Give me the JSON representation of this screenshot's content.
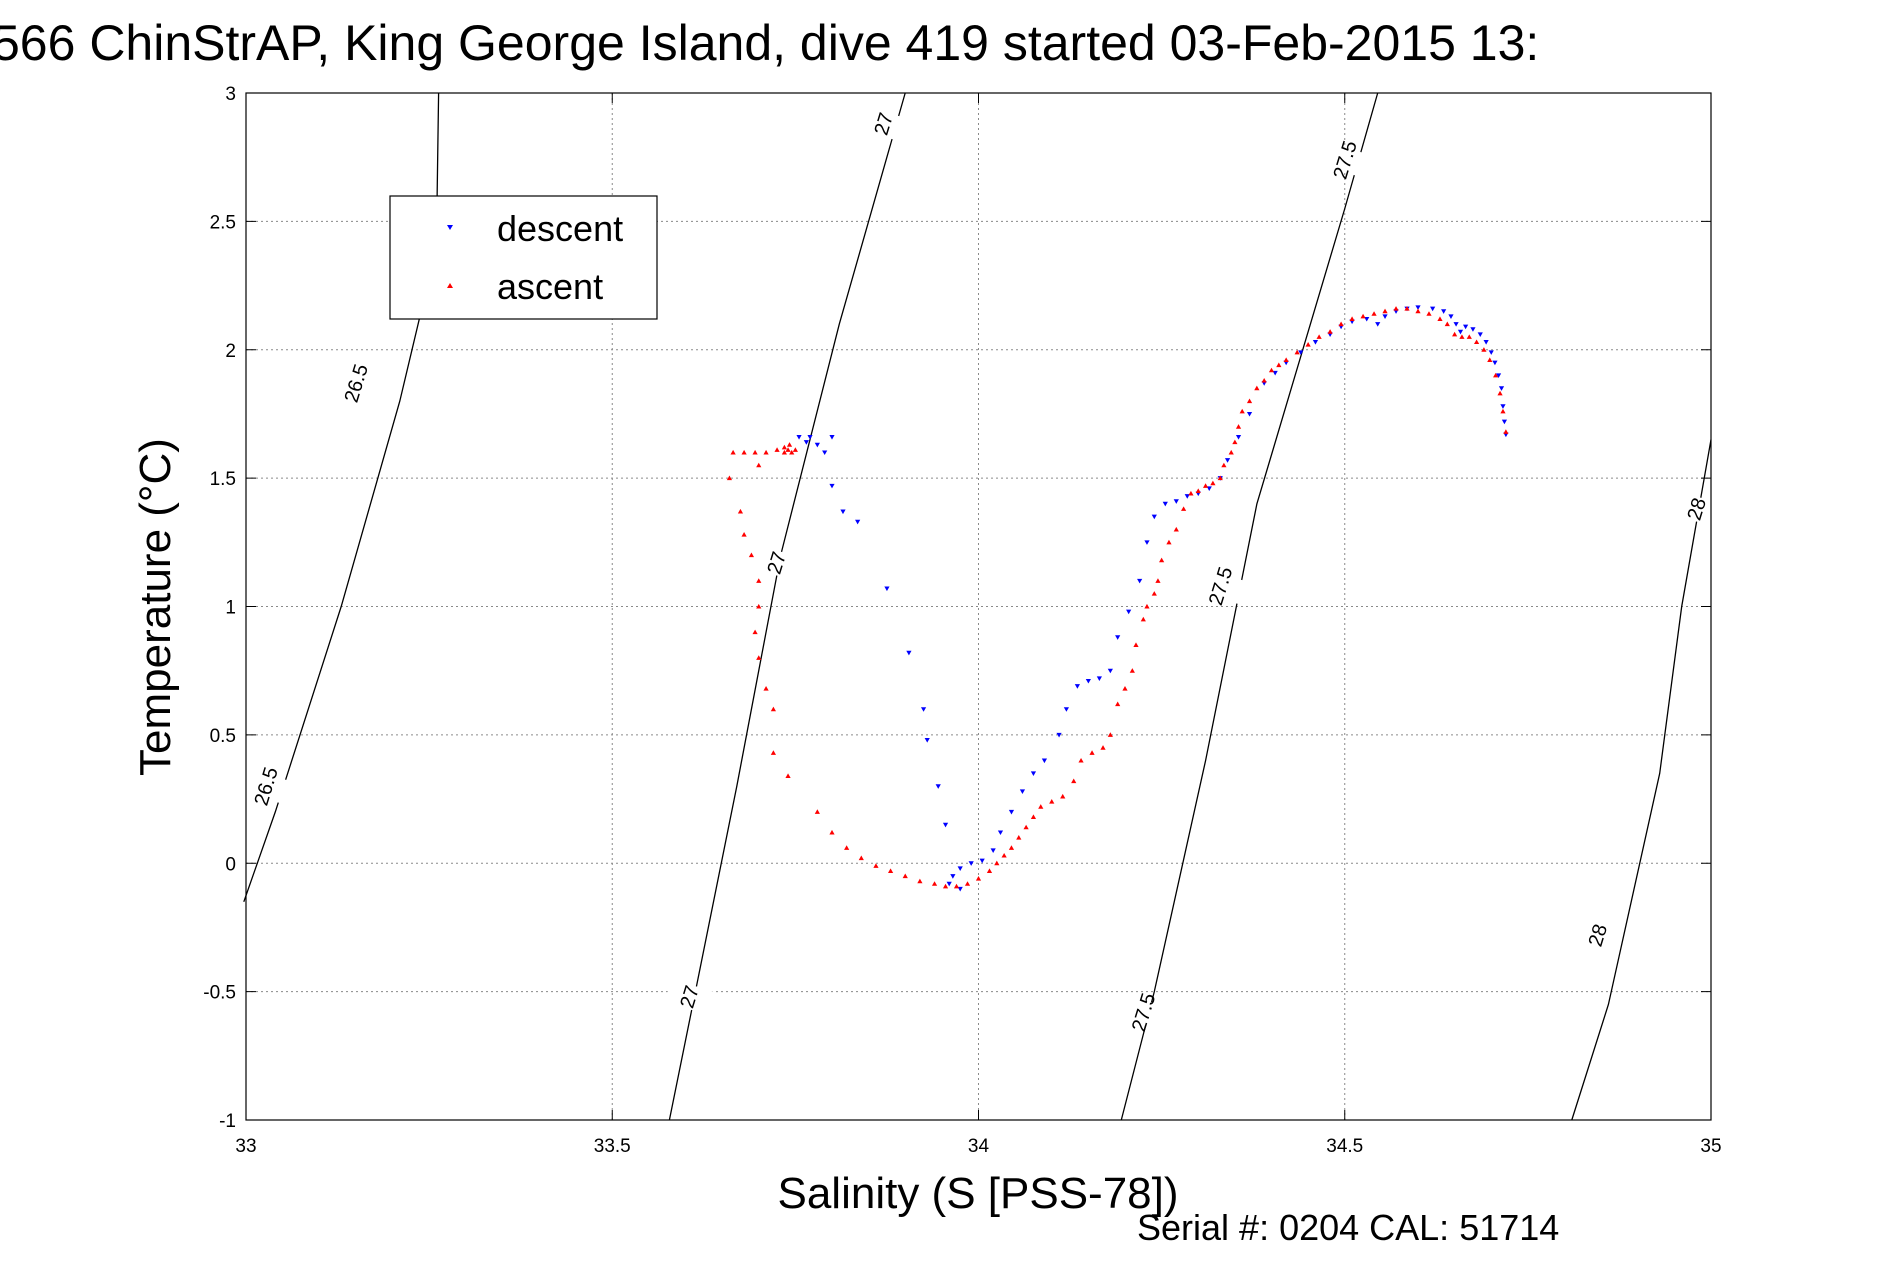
{
  "chart_data": {
    "type": "scatter",
    "title": "566 ChinStrAP, King George Island, dive 419 started 03-Feb-2015 13:",
    "xlabel": "Salinity (S [PSS-78])",
    "ylabel": "Temperature (°C)",
    "xlim": [
      33,
      35
    ],
    "ylim": [
      -1,
      3
    ],
    "x_ticks": [
      33,
      33.5,
      34,
      34.5,
      35
    ],
    "x_tick_labels": [
      "33",
      "33.5",
      "34",
      "34.5",
      "35"
    ],
    "y_ticks": [
      -1,
      -0.5,
      0,
      0.5,
      1,
      1.5,
      2,
      2.5,
      3
    ],
    "y_tick_labels": [
      "-1",
      "-0.5",
      "0",
      "0.5",
      "1",
      "1.5",
      "2",
      "2.5",
      "3"
    ],
    "grid": true,
    "legend_position": "top-left",
    "contours": [
      {
        "level": "26.5",
        "points": [
          [
            32.997,
            -0.15
          ],
          [
            33.04,
            0.2
          ],
          [
            33.13,
            1.0
          ],
          [
            33.21,
            1.8
          ],
          [
            33.26,
            2.4
          ],
          [
            33.263,
            3.0
          ]
        ],
        "labels": [
          [
            33.027,
            0.3
          ],
          [
            33.15,
            1.87
          ]
        ]
      },
      {
        "level": "27",
        "points": [
          [
            33.578,
            -1.0
          ],
          [
            33.61,
            -0.55
          ],
          [
            33.67,
            0.3
          ],
          [
            33.73,
            1.2
          ],
          [
            33.81,
            2.1
          ],
          [
            33.9,
            3.0
          ]
        ],
        "labels": [
          [
            33.605,
            -0.52
          ],
          [
            33.724,
            1.17
          ],
          [
            33.87,
            2.88
          ]
        ]
      },
      {
        "level": "27.5",
        "points": [
          [
            34.195,
            -1.0
          ],
          [
            34.24,
            -0.5
          ],
          [
            34.31,
            0.4
          ],
          [
            34.38,
            1.4
          ],
          [
            34.5,
            2.55
          ],
          [
            34.545,
            3.0
          ]
        ],
        "labels": [
          [
            34.225,
            -0.58
          ],
          [
            34.33,
            1.08
          ],
          [
            34.5,
            2.74
          ]
        ]
      },
      {
        "level": "28",
        "points": [
          [
            34.81,
            -1.0
          ],
          [
            34.86,
            -0.55
          ],
          [
            34.93,
            0.35
          ],
          [
            34.96,
            1.0
          ],
          [
            35.0,
            1.65
          ]
        ],
        "labels": [
          [
            34.845,
            -0.28
          ],
          [
            34.98,
            1.38
          ]
        ]
      }
    ],
    "series": [
      {
        "name": "descent",
        "color": "#0000ff",
        "marker": "triangle-down",
        "points": [
          [
            34.72,
            1.67
          ],
          [
            34.718,
            1.72
          ],
          [
            34.716,
            1.78
          ],
          [
            34.714,
            1.85
          ],
          [
            34.71,
            1.9
          ],
          [
            34.705,
            1.95
          ],
          [
            34.7,
            1.99
          ],
          [
            34.693,
            2.03
          ],
          [
            34.685,
            2.06
          ],
          [
            34.675,
            2.08
          ],
          [
            34.665,
            2.09
          ],
          [
            34.658,
            2.07
          ],
          [
            34.652,
            2.1
          ],
          [
            34.645,
            2.13
          ],
          [
            34.635,
            2.15
          ],
          [
            34.62,
            2.16
          ],
          [
            34.6,
            2.165
          ],
          [
            34.585,
            2.16
          ],
          [
            34.57,
            2.15
          ],
          [
            34.555,
            2.13
          ],
          [
            34.545,
            2.1
          ],
          [
            34.53,
            2.12
          ],
          [
            34.51,
            2.11
          ],
          [
            34.495,
            2.09
          ],
          [
            34.48,
            2.06
          ],
          [
            34.46,
            2.03
          ],
          [
            34.44,
            1.99
          ],
          [
            34.42,
            1.95
          ],
          [
            34.405,
            1.91
          ],
          [
            34.39,
            1.87
          ],
          [
            34.37,
            1.75
          ],
          [
            34.355,
            1.66
          ],
          [
            34.34,
            1.57
          ],
          [
            34.33,
            1.5
          ],
          [
            34.315,
            1.46
          ],
          [
            34.3,
            1.44
          ],
          [
            34.285,
            1.43
          ],
          [
            34.27,
            1.41
          ],
          [
            34.255,
            1.4
          ],
          [
            34.24,
            1.35
          ],
          [
            34.23,
            1.25
          ],
          [
            34.22,
            1.1
          ],
          [
            34.205,
            0.98
          ],
          [
            34.19,
            0.88
          ],
          [
            34.18,
            0.75
          ],
          [
            34.165,
            0.72
          ],
          [
            34.15,
            0.71
          ],
          [
            34.135,
            0.69
          ],
          [
            34.12,
            0.6
          ],
          [
            34.11,
            0.5
          ],
          [
            34.09,
            0.4
          ],
          [
            34.075,
            0.35
          ],
          [
            34.06,
            0.28
          ],
          [
            34.045,
            0.2
          ],
          [
            34.03,
            0.12
          ],
          [
            34.02,
            0.05
          ],
          [
            34.005,
            0.01
          ],
          [
            33.99,
            0.0
          ],
          [
            33.975,
            -0.02
          ],
          [
            33.965,
            -0.05
          ],
          [
            33.96,
            -0.08
          ],
          [
            33.975,
            -0.1
          ],
          [
            33.955,
            0.15
          ],
          [
            33.945,
            0.3
          ],
          [
            33.93,
            0.48
          ],
          [
            33.925,
            0.6
          ],
          [
            33.905,
            0.82
          ],
          [
            33.875,
            1.07
          ],
          [
            33.835,
            1.33
          ],
          [
            33.815,
            1.37
          ],
          [
            33.8,
            1.47
          ],
          [
            33.79,
            1.6
          ],
          [
            33.8,
            1.66
          ],
          [
            33.78,
            1.63
          ],
          [
            33.77,
            1.66
          ],
          [
            33.765,
            1.64
          ],
          [
            33.755,
            1.66
          ]
        ]
      },
      {
        "name": "ascent",
        "color": "#ff0000",
        "marker": "triangle-up",
        "points": [
          [
            34.72,
            1.68
          ],
          [
            34.716,
            1.76
          ],
          [
            34.712,
            1.83
          ],
          [
            34.706,
            1.9
          ],
          [
            34.698,
            1.96
          ],
          [
            34.69,
            2.0
          ],
          [
            34.68,
            2.03
          ],
          [
            34.67,
            2.05
          ],
          [
            34.66,
            2.05
          ],
          [
            34.65,
            2.06
          ],
          [
            34.64,
            2.1
          ],
          [
            34.63,
            2.12
          ],
          [
            34.615,
            2.14
          ],
          [
            34.6,
            2.15
          ],
          [
            34.585,
            2.16
          ],
          [
            34.57,
            2.16
          ],
          [
            34.555,
            2.15
          ],
          [
            34.54,
            2.14
          ],
          [
            34.525,
            2.13
          ],
          [
            34.51,
            2.12
          ],
          [
            34.495,
            2.1
          ],
          [
            34.48,
            2.07
          ],
          [
            34.465,
            2.05
          ],
          [
            34.45,
            2.02
          ],
          [
            34.435,
            1.99
          ],
          [
            34.42,
            1.96
          ],
          [
            34.41,
            1.94
          ],
          [
            34.4,
            1.92
          ],
          [
            34.39,
            1.88
          ],
          [
            34.38,
            1.85
          ],
          [
            34.37,
            1.8
          ],
          [
            34.36,
            1.76
          ],
          [
            34.355,
            1.7
          ],
          [
            34.35,
            1.64
          ],
          [
            34.345,
            1.6
          ],
          [
            34.335,
            1.55
          ],
          [
            34.33,
            1.5
          ],
          [
            34.32,
            1.48
          ],
          [
            34.31,
            1.47
          ],
          [
            34.3,
            1.45
          ],
          [
            34.29,
            1.44
          ],
          [
            34.28,
            1.38
          ],
          [
            34.27,
            1.3
          ],
          [
            34.26,
            1.25
          ],
          [
            34.25,
            1.18
          ],
          [
            34.245,
            1.1
          ],
          [
            34.24,
            1.05
          ],
          [
            34.23,
            1.0
          ],
          [
            34.225,
            0.95
          ],
          [
            34.215,
            0.85
          ],
          [
            34.21,
            0.75
          ],
          [
            34.2,
            0.68
          ],
          [
            34.19,
            0.62
          ],
          [
            34.18,
            0.5
          ],
          [
            34.17,
            0.45
          ],
          [
            34.155,
            0.43
          ],
          [
            34.14,
            0.4
          ],
          [
            34.13,
            0.32
          ],
          [
            34.115,
            0.26
          ],
          [
            34.1,
            0.24
          ],
          [
            34.085,
            0.22
          ],
          [
            34.075,
            0.18
          ],
          [
            34.065,
            0.14
          ],
          [
            34.055,
            0.1
          ],
          [
            34.045,
            0.06
          ],
          [
            34.035,
            0.03
          ],
          [
            34.025,
            0.0
          ],
          [
            34.015,
            -0.03
          ],
          [
            34.0,
            -0.06
          ],
          [
            33.985,
            -0.08
          ],
          [
            33.97,
            -0.09
          ],
          [
            33.955,
            -0.09
          ],
          [
            33.94,
            -0.08
          ],
          [
            33.92,
            -0.07
          ],
          [
            33.9,
            -0.05
          ],
          [
            33.88,
            -0.03
          ],
          [
            33.86,
            -0.01
          ],
          [
            33.84,
            0.02
          ],
          [
            33.82,
            0.06
          ],
          [
            33.8,
            0.12
          ],
          [
            33.78,
            0.2
          ],
          [
            33.74,
            0.34
          ],
          [
            33.72,
            0.43
          ],
          [
            33.72,
            0.6
          ],
          [
            33.71,
            0.68
          ],
          [
            33.7,
            0.8
          ],
          [
            33.695,
            0.9
          ],
          [
            33.7,
            1.0
          ],
          [
            33.7,
            1.1
          ],
          [
            33.69,
            1.2
          ],
          [
            33.68,
            1.28
          ],
          [
            33.675,
            1.37
          ],
          [
            33.66,
            1.5
          ],
          [
            33.665,
            1.6
          ],
          [
            33.68,
            1.6
          ],
          [
            33.695,
            1.6
          ],
          [
            33.71,
            1.6
          ],
          [
            33.725,
            1.61
          ],
          [
            33.735,
            1.62
          ],
          [
            33.74,
            1.61
          ],
          [
            33.745,
            1.6
          ],
          [
            33.75,
            1.61
          ],
          [
            33.742,
            1.63
          ],
          [
            33.735,
            1.6
          ],
          [
            33.7,
            1.55
          ]
        ]
      }
    ],
    "footer": "Serial #: 0204  CAL: 51714"
  }
}
